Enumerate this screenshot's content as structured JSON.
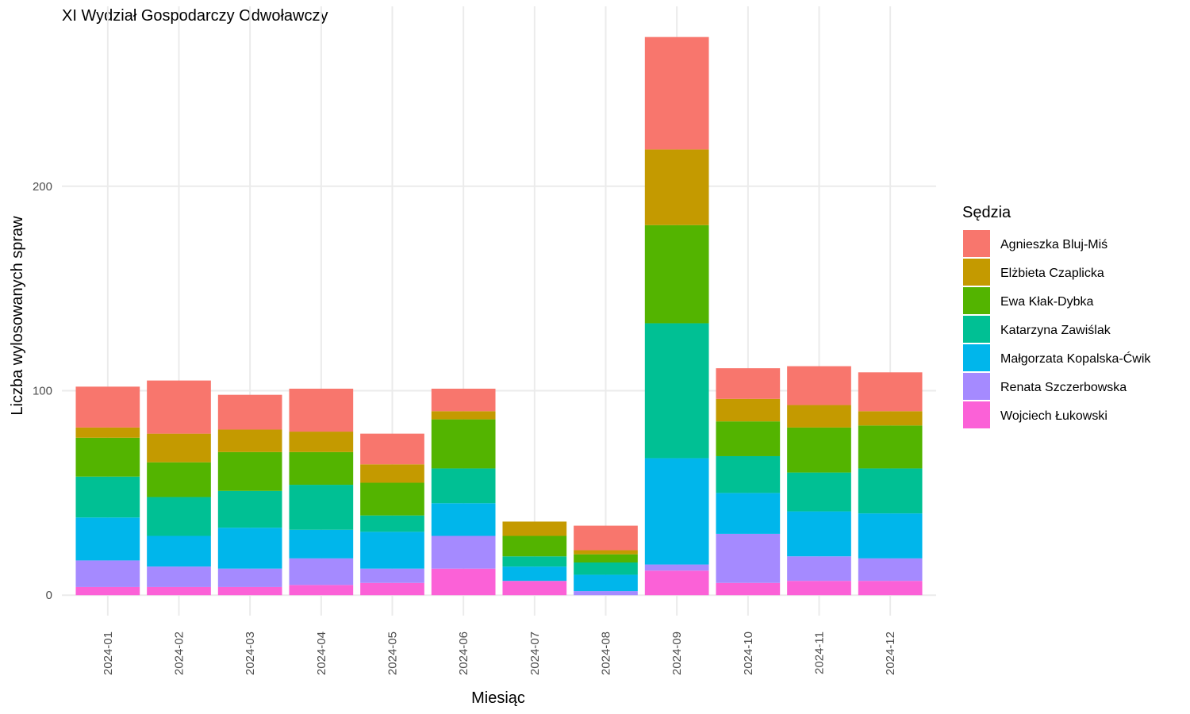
{
  "chart_data": {
    "type": "bar",
    "stacked": true,
    "title": "XI Wydział Gospodarczy Odwoławczy",
    "xlabel": "Miesiąc",
    "ylabel": "Liczba wylosowanych spraw",
    "ylim": [
      -10,
      288
    ],
    "yticks": [
      0,
      100,
      200
    ],
    "grid": true,
    "legend_title": "Sędzia",
    "legend_position": "right",
    "categories": [
      "2024-01",
      "2024-02",
      "2024-03",
      "2024-04",
      "2024-05",
      "2024-06",
      "2024-07",
      "2024-08",
      "2024-09",
      "2024-10",
      "2024-11",
      "2024-12"
    ],
    "series": [
      {
        "name": "Agnieszka Bluj-Miś",
        "color": "#F8766D",
        "values": [
          20,
          26,
          17,
          21,
          15,
          11,
          0,
          12,
          55,
          15,
          19,
          19
        ]
      },
      {
        "name": "Elżbieta Czaplicka",
        "color": "#C49A00",
        "values": [
          5,
          14,
          11,
          10,
          9,
          4,
          7,
          2,
          37,
          11,
          11,
          7
        ]
      },
      {
        "name": "Ewa Kłak-Dybka",
        "color": "#53B400",
        "values": [
          19,
          17,
          19,
          16,
          16,
          24,
          10,
          4,
          48,
          17,
          22,
          21
        ]
      },
      {
        "name": "Katarzyna Zawiślak",
        "color": "#00C094",
        "values": [
          20,
          19,
          18,
          22,
          8,
          17,
          5,
          6,
          66,
          18,
          19,
          22
        ]
      },
      {
        "name": "Małgorzata Kopalska-Ćwik",
        "color": "#00B6EB",
        "values": [
          21,
          15,
          20,
          14,
          18,
          16,
          7,
          8,
          52,
          20,
          22,
          22
        ]
      },
      {
        "name": "Renata Szczerbowska",
        "color": "#A58AFF",
        "values": [
          13,
          10,
          9,
          13,
          7,
          16,
          0,
          2,
          3,
          24,
          12,
          11
        ]
      },
      {
        "name": "Wojciech Łukowski",
        "color": "#FB61D7",
        "values": [
          4,
          4,
          4,
          5,
          6,
          13,
          7,
          0,
          12,
          6,
          7,
          7
        ]
      }
    ]
  }
}
